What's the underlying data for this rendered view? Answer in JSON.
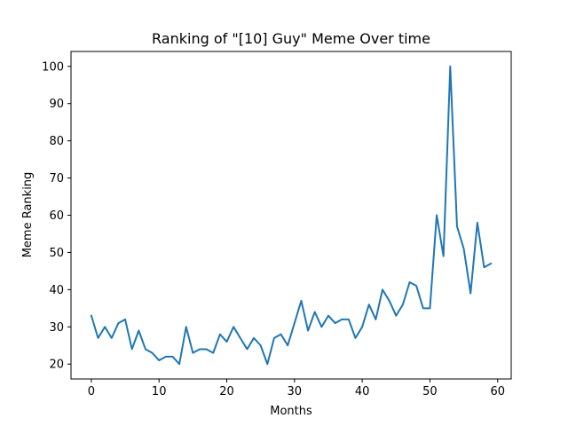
{
  "chart_data": {
    "type": "line",
    "title": "Ranking of \"[10] Guy\" Meme Over time",
    "xlabel": "Months",
    "ylabel": "Meme Ranking",
    "xlim": [
      -3,
      62
    ],
    "ylim": [
      16,
      104
    ],
    "xticks": [
      0,
      10,
      20,
      30,
      40,
      50,
      60
    ],
    "yticks": [
      20,
      30,
      40,
      50,
      60,
      70,
      80,
      90,
      100
    ],
    "grid": false,
    "line_color": "#1f77b4",
    "series": [
      {
        "x": [
          0,
          1,
          2,
          3,
          4,
          5,
          6,
          7,
          8,
          9,
          10,
          11,
          12,
          13,
          14,
          15,
          16,
          17,
          18,
          19,
          20,
          21,
          22,
          23,
          24,
          25,
          26,
          27,
          28,
          29,
          30,
          31,
          32,
          33,
          34,
          35,
          36,
          37,
          38,
          39,
          40,
          41,
          42,
          43,
          44,
          45,
          46,
          47,
          48,
          49,
          50,
          51,
          52,
          53,
          54,
          55,
          56,
          57,
          58,
          59
        ],
        "values": [
          33,
          27,
          30,
          27,
          31,
          32,
          24,
          29,
          24,
          23,
          21,
          22,
          22,
          20,
          30,
          23,
          24,
          24,
          23,
          28,
          26,
          30,
          27,
          24,
          27,
          25,
          20,
          27,
          28,
          25,
          31,
          37,
          29,
          34,
          30,
          33,
          31,
          32,
          32,
          27,
          30,
          36,
          32,
          40,
          37,
          33,
          36,
          42,
          41,
          35,
          35,
          60,
          49,
          100,
          57,
          51,
          39,
          58,
          46,
          47
        ]
      }
    ]
  }
}
